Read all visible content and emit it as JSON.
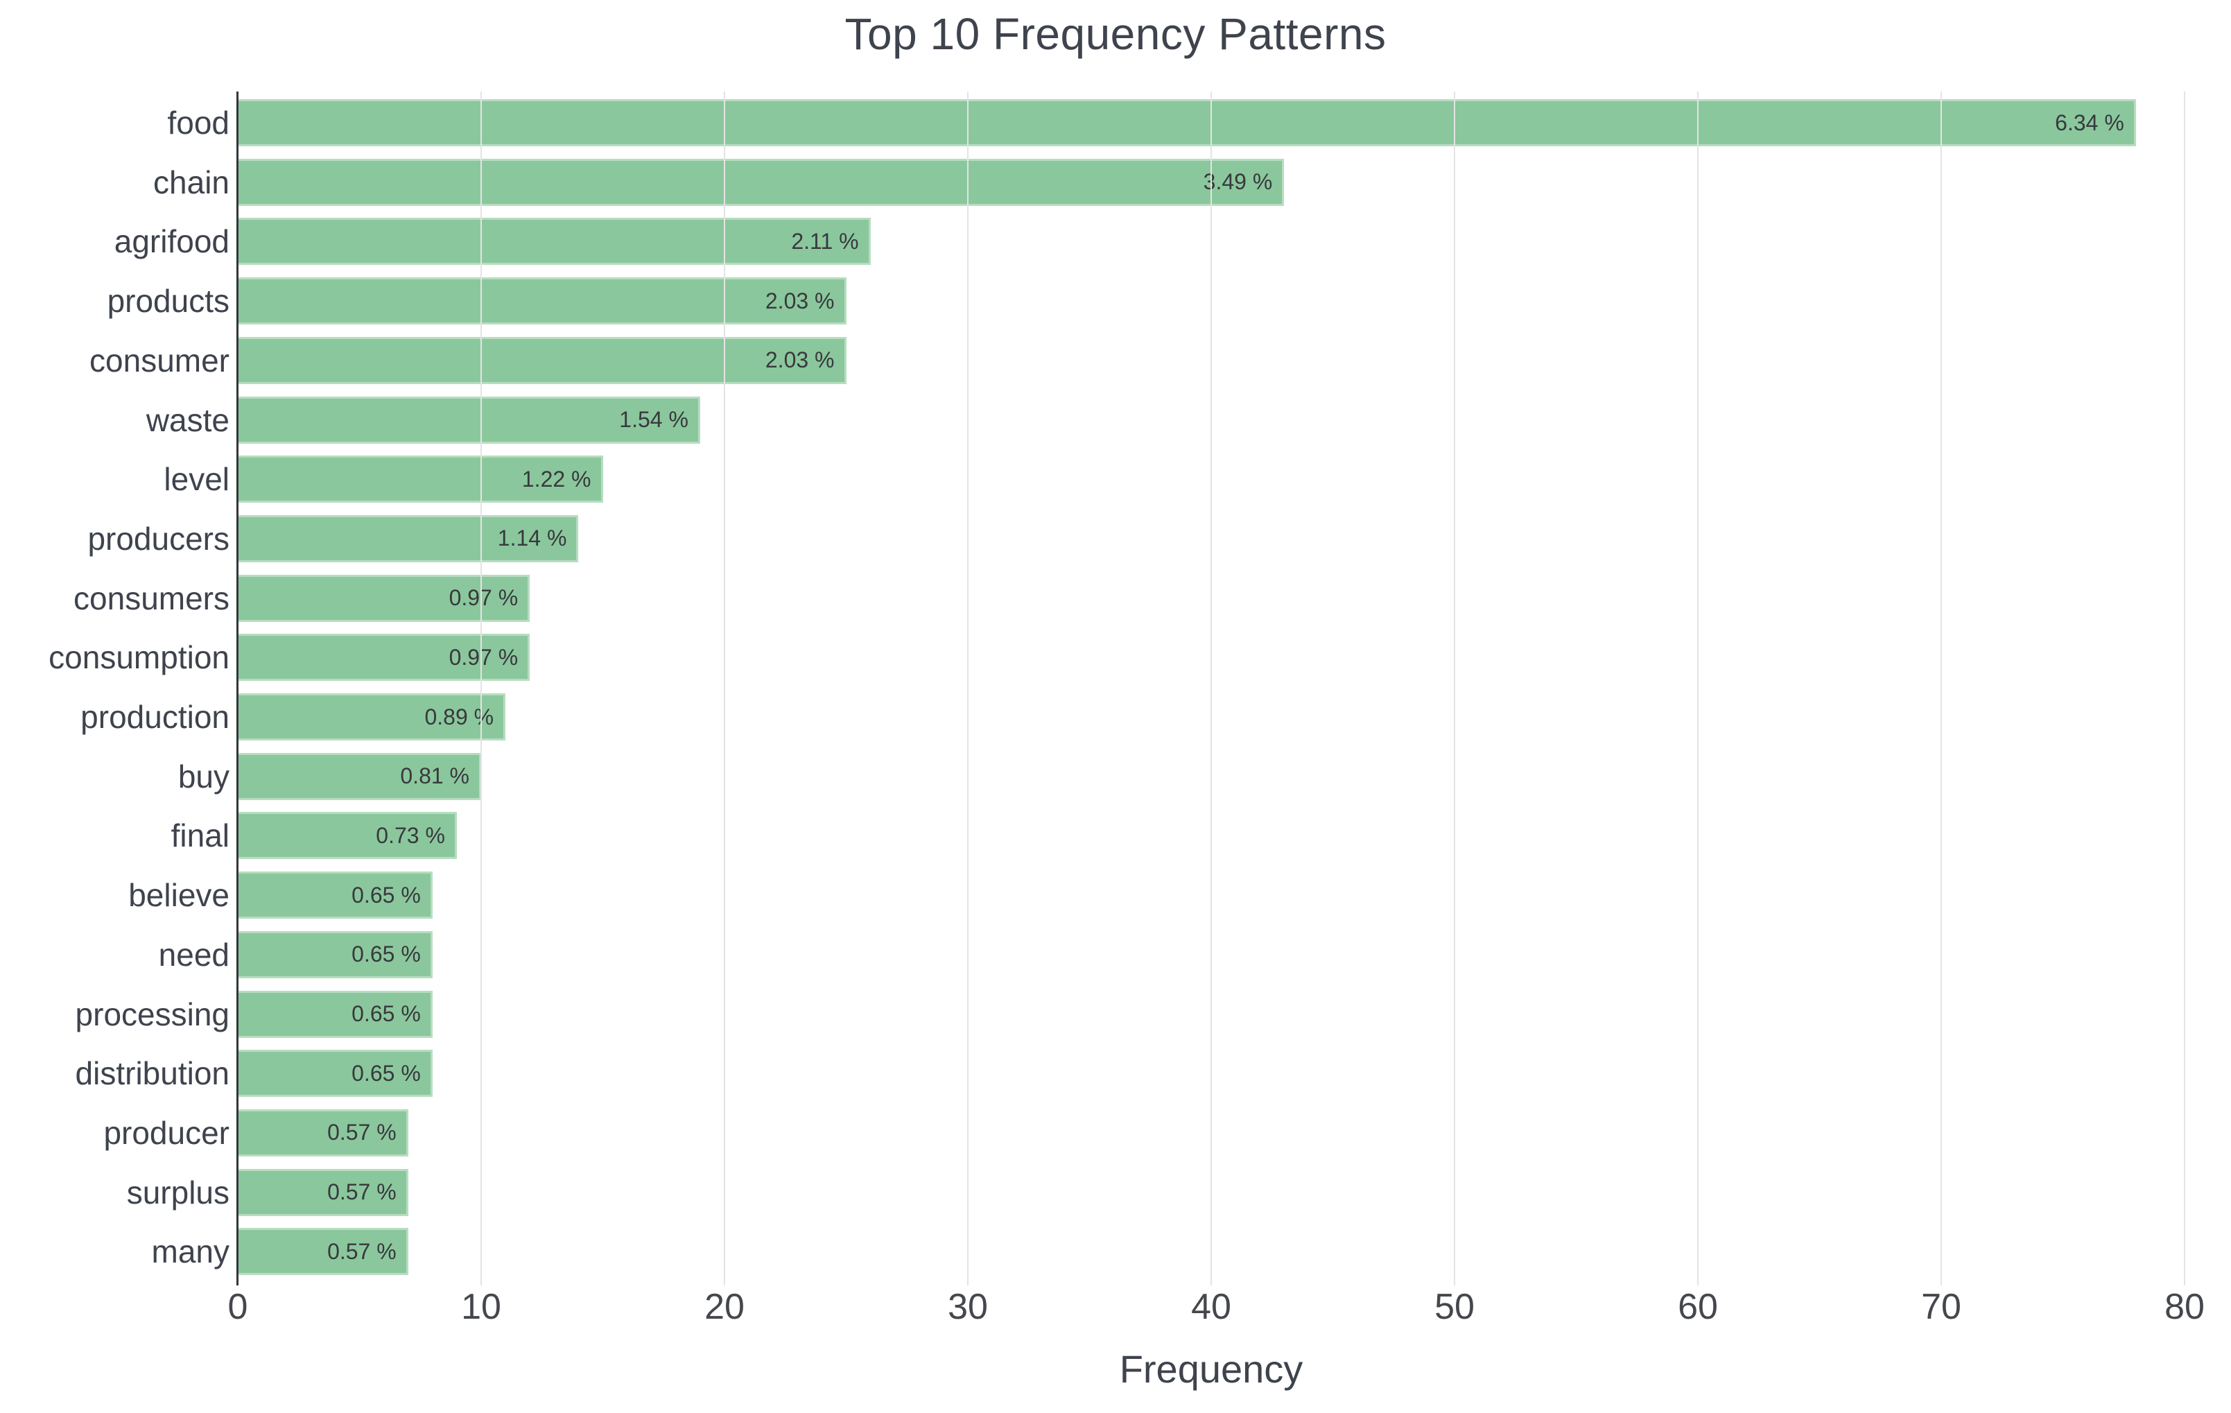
{
  "chart_data": {
    "type": "bar",
    "orientation": "horizontal",
    "title": "Top 10 Frequency Patterns",
    "xlabel": "Frequency",
    "ylabel": "",
    "categories": [
      "food",
      "chain",
      "agrifood",
      "products",
      "consumer",
      "waste",
      "level",
      "producers",
      "consumers",
      "consumption",
      "production",
      "buy",
      "final",
      "believe",
      "need",
      "processing",
      "distribution",
      "producer",
      "surplus",
      "many"
    ],
    "values": [
      78,
      43,
      26,
      25,
      25,
      19,
      15,
      14,
      12,
      12,
      11,
      10,
      9,
      8,
      8,
      8,
      8,
      7,
      7,
      7
    ],
    "bar_labels": [
      "6.34 %",
      "3.49 %",
      "2.11 %",
      "2.03 %",
      "2.03 %",
      "1.54 %",
      "1.22 %",
      "1.14 %",
      "0.97 %",
      "0.97 %",
      "0.89 %",
      "0.81 %",
      "0.73 %",
      "0.65 %",
      "0.65 %",
      "0.65 %",
      "0.65 %",
      "0.57 %",
      "0.57 %",
      "0.57 %"
    ],
    "xticks": [
      0,
      10,
      20,
      30,
      40,
      50,
      60,
      70,
      80
    ],
    "xlim": [
      0,
      80
    ],
    "grid": "vertical",
    "legend_position": "none",
    "colors": {
      "bar": "#8bc79c",
      "bar_border": "#b7ddc1",
      "grid": "#e4e4e4",
      "axis_line": "#33363b",
      "title_text": "#3e434d",
      "tick_text": "#44474c",
      "category_text": "#3e434d",
      "bar_label_text": "#37393e",
      "background": "#ffffff"
    }
  }
}
